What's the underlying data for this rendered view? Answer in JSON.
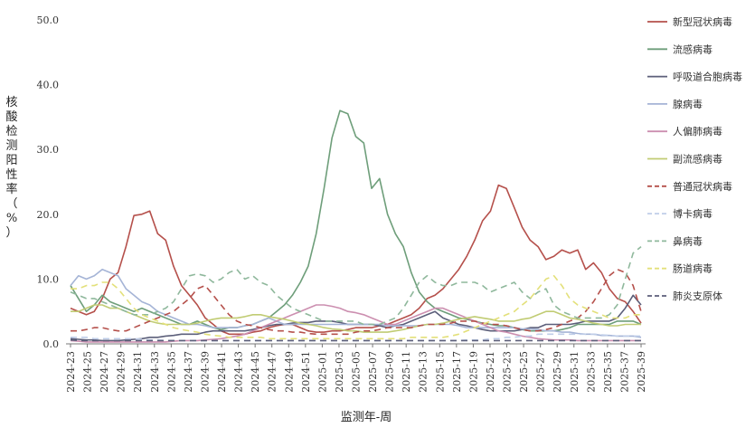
{
  "chart_data": {
    "type": "line",
    "title": "",
    "xlabel": "监测年-周",
    "ylabel": "核酸检测阳性率（%）",
    "ylim": [
      0,
      50
    ],
    "yticks": [
      "0.0",
      "10.0",
      "20.0",
      "30.0",
      "40.0",
      "50.0"
    ],
    "grid": false,
    "legend_position": "right",
    "x_tick_labels": [
      "2024-23",
      "2024-25",
      "2024-27",
      "2024-29",
      "2024-31",
      "2024-33",
      "2024-35",
      "2024-37",
      "2024-39",
      "2024-41",
      "2024-43",
      "2024-45",
      "2024-47",
      "2024-49",
      "2024-51",
      "2025-01",
      "2025-03",
      "2025-05",
      "2025-07",
      "2025-09",
      "2025-11",
      "2025-13",
      "2025-15",
      "2025-17",
      "2025-19",
      "2025-21",
      "2025-23",
      "2025-25",
      "2025-27",
      "2025-29",
      "2025-31",
      "2025-33",
      "2025-35",
      "2025-37",
      "2025-39"
    ],
    "series": [
      {
        "name": "新型冠状病毒",
        "color": "#b5504b",
        "dash": "solid",
        "values": [
          5.5,
          5,
          4.5,
          5,
          7,
          10,
          11,
          15,
          19.8,
          20,
          20.5,
          17,
          16,
          12,
          9,
          7.5,
          6,
          4,
          3,
          2,
          1.5,
          1.5,
          1.5,
          1.8,
          2,
          2.5,
          2.8,
          3,
          3,
          2.5,
          2,
          1.8,
          1.8,
          2,
          2,
          2.2,
          2.5,
          2.5,
          2.5,
          2.8,
          3,
          3.5,
          4,
          4.5,
          5.5,
          7,
          7.5,
          8.5,
          10,
          11.5,
          13.5,
          16,
          19,
          20.5,
          24.5,
          24,
          21,
          18,
          16,
          15,
          13,
          13.5,
          14.5,
          14,
          14.5,
          11.5,
          12.5,
          11,
          8.5,
          7,
          6.5,
          5,
          3.2
        ]
      },
      {
        "name": "流感病毒",
        "color": "#6e9e7a",
        "dash": "solid",
        "values": [
          9,
          7,
          5,
          6,
          7.5,
          6.5,
          6,
          5.5,
          5,
          5.5,
          5,
          4.5,
          4,
          3.5,
          3,
          3,
          3.5,
          3,
          2.5,
          2.2,
          2.5,
          2.5,
          2.8,
          3,
          3.5,
          4,
          5,
          6,
          7.5,
          9.5,
          12,
          17,
          24,
          31.8,
          36,
          35.5,
          32,
          31,
          24,
          25.5,
          20,
          17,
          15,
          11,
          8,
          6.5,
          5.5,
          5,
          4.5,
          4,
          3.8,
          3.5,
          3.2,
          3,
          2.8,
          2.8,
          2.5,
          2.2,
          2,
          2,
          2,
          2,
          2.2,
          2.5,
          3,
          3,
          3,
          3,
          3,
          3.5,
          3.5,
          3.5,
          3
        ]
      },
      {
        "name": "呼吸道合胞病毒",
        "color": "#5c5f7a",
        "dash": "solid",
        "values": [
          0.8,
          0.7,
          0.6,
          0.6,
          0.5,
          0.5,
          0.5,
          0.6,
          0.7,
          0.8,
          1,
          1,
          1.2,
          1.3,
          1.5,
          1.5,
          1.5,
          1.8,
          2,
          2,
          2,
          2,
          2,
          2.2,
          2.5,
          2.8,
          3,
          3,
          3.2,
          3.3,
          3.3,
          3.5,
          3.5,
          3.5,
          3.3,
          3,
          3,
          3,
          3,
          2.8,
          2.5,
          2.8,
          3,
          3.5,
          4,
          4.5,
          5,
          4,
          3.5,
          3,
          2.8,
          2.5,
          2.2,
          2,
          2,
          2,
          2,
          2.2,
          2.5,
          2.5,
          3,
          3,
          3,
          3,
          3.2,
          3.5,
          3.5,
          3.5,
          3.5,
          4,
          5.5,
          7.5,
          6
        ]
      },
      {
        "name": "腺病毒",
        "color": "#a5b4d6",
        "dash": "solid",
        "values": [
          9,
          10.5,
          10,
          10.5,
          11.5,
          11,
          10.5,
          8.5,
          7.5,
          6.5,
          6,
          5,
          4.5,
          4,
          3.5,
          3,
          3,
          2.8,
          2.5,
          2.5,
          2.5,
          2.5,
          2.8,
          3,
          3.5,
          4,
          3.5,
          3,
          3,
          3,
          3,
          3,
          3,
          3,
          3,
          3,
          3,
          3,
          3,
          3,
          2.8,
          2.8,
          2.8,
          2.8,
          2.8,
          3,
          3,
          3,
          3,
          2.8,
          2.5,
          2.5,
          2.5,
          2.5,
          2.5,
          2.5,
          2.5,
          2.3,
          2.3,
          2.2,
          2,
          2,
          1.8,
          1.8,
          1.6,
          1.5,
          1.5,
          1.3,
          1.3,
          1.2,
          1.2,
          1.2,
          1
        ]
      },
      {
        "name": "人偏肺病毒",
        "color": "#cc8fb0",
        "dash": "solid",
        "values": [
          0.5,
          0.4,
          0.3,
          0.3,
          0.3,
          0.3,
          0.3,
          0.3,
          0.3,
          0.3,
          0.3,
          0.3,
          0.3,
          0.4,
          0.5,
          0.5,
          0.5,
          0.6,
          0.7,
          0.8,
          1,
          1.2,
          1.5,
          2,
          2.5,
          3,
          3.5,
          4,
          4.5,
          5,
          5.5,
          6,
          6,
          5.8,
          5.5,
          5,
          4.8,
          4.5,
          4,
          3.5,
          3,
          3,
          3.5,
          4,
          4.5,
          5,
          5.5,
          5.5,
          5,
          4.5,
          4,
          3.5,
          3,
          2.5,
          2,
          1.8,
          1.5,
          1.2,
          1,
          0.8,
          0.7,
          0.6,
          0.6,
          0.6,
          0.5,
          0.5,
          0.5,
          0.5,
          0.5,
          0.5,
          0.5,
          0.5,
          0.5
        ]
      },
      {
        "name": "副流感病毒",
        "color": "#c1cc74",
        "dash": "solid",
        "values": [
          5,
          5,
          5.5,
          6,
          6,
          5.5,
          5.5,
          5,
          4.5,
          4,
          3.5,
          3.2,
          3,
          3,
          3,
          3,
          3.2,
          3.5,
          3.8,
          4,
          4,
          4,
          4.2,
          4.5,
          4.5,
          4.2,
          4,
          3.8,
          3.5,
          3.2,
          3,
          2.8,
          2.5,
          2.3,
          2.2,
          2,
          2,
          1.8,
          1.8,
          1.8,
          1.8,
          2,
          2.2,
          2.5,
          2.8,
          3,
          3,
          3.2,
          3.5,
          3.8,
          4,
          4.2,
          4,
          3.8,
          3.5,
          3.5,
          3.5,
          3.8,
          4,
          4.5,
          5,
          5,
          4.5,
          4,
          3.8,
          3.5,
          3.2,
          3,
          2.8,
          2.8,
          3,
          3,
          3
        ]
      },
      {
        "name": "普通冠状病毒",
        "color": "#b5504b",
        "dash": "long",
        "values": [
          2,
          2,
          2.2,
          2.5,
          2.5,
          2.2,
          2,
          2,
          2.5,
          3,
          3.5,
          4,
          4.5,
          5,
          6,
          7,
          8.5,
          9,
          7.5,
          6,
          4.5,
          3.5,
          3,
          2.8,
          2.5,
          2.2,
          2,
          2,
          1.8,
          1.8,
          1.6,
          1.5,
          1.5,
          1.5,
          1.5,
          1.5,
          1.8,
          2,
          2,
          2.2,
          2.5,
          2.5,
          2.5,
          2.5,
          2.8,
          3,
          3,
          3,
          3.2,
          3.5,
          3.5,
          3.5,
          3.2,
          3,
          3,
          2.8,
          2.5,
          2.2,
          2,
          2,
          2.2,
          2.5,
          3,
          3.5,
          4,
          5,
          6.5,
          8.5,
          10.5,
          11.5,
          11,
          9,
          5
        ]
      },
      {
        "name": "博卡病毒",
        "color": "#bfcde8",
        "dash": "long",
        "values": [
          1,
          1,
          1,
          0.8,
          0.8,
          0.8,
          0.8,
          0.8,
          0.8,
          0.7,
          0.6,
          0.6,
          0.5,
          0.5,
          0.5,
          0.5,
          0.5,
          0.5,
          0.5,
          0.5,
          0.5,
          0.5,
          0.5,
          0.5,
          0.5,
          0.5,
          0.5,
          0.5,
          0.5,
          0.5,
          0.5,
          0.5,
          0.5,
          0.5,
          0.5,
          0.5,
          0.5,
          0.5,
          0.5,
          0.5,
          0.5,
          0.5,
          0.5,
          0.5,
          0.5,
          0.5,
          0.5,
          0.5,
          0.5,
          0.5,
          0.6,
          0.6,
          0.6,
          0.8,
          0.8,
          1,
          1,
          1.2,
          1.2,
          1.5,
          1.5,
          1.5,
          1.5,
          1.5,
          1.5,
          1.5,
          1.5,
          1.4,
          1.3,
          1.2,
          1.2,
          1.2,
          1.2
        ]
      },
      {
        "name": "鼻病毒",
        "color": "#8fb89c",
        "dash": "long",
        "values": [
          8,
          7.5,
          7,
          7,
          6.5,
          6,
          5.5,
          5,
          4.5,
          4.5,
          4.5,
          5,
          5.5,
          6.5,
          8.5,
          10.5,
          10.8,
          10.5,
          9.5,
          10,
          11,
          11.5,
          10,
          10.5,
          9.5,
          9,
          7.5,
          6.5,
          5.5,
          5,
          4.5,
          4,
          3.5,
          3.5,
          3.5,
          3.5,
          3.5,
          3,
          3,
          3,
          3.5,
          4,
          5.5,
          7.5,
          9.5,
          10.5,
          9.5,
          9,
          9,
          9.5,
          9.5,
          9.5,
          9,
          8,
          8.5,
          9,
          9.5,
          8,
          7,
          8,
          8.5,
          6,
          5,
          4.5,
          4,
          4,
          4,
          4,
          4.5,
          6,
          10,
          14,
          15
        ]
      },
      {
        "name": "肠道病毒",
        "color": "#e3e07a",
        "dash": "long",
        "values": [
          8.5,
          8.5,
          9,
          9,
          9.5,
          9.5,
          8.5,
          7,
          5.5,
          4.5,
          4,
          3.5,
          3,
          2.5,
          2.2,
          2,
          1.8,
          1.5,
          1.3,
          1.2,
          1,
          1,
          1,
          1,
          1,
          0.8,
          0.8,
          0.8,
          0.8,
          0.8,
          0.8,
          0.8,
          0.8,
          0.8,
          0.8,
          0.8,
          0.8,
          0.8,
          0.8,
          0.8,
          0.8,
          0.8,
          0.8,
          1,
          1,
          1,
          1,
          1,
          1.2,
          1.5,
          2,
          2.5,
          3,
          3.5,
          4,
          4.5,
          5,
          6,
          7,
          8.5,
          10,
          10.5,
          9,
          7,
          6,
          5.5,
          5,
          4.5,
          4,
          4,
          4,
          4.5,
          4.5
        ]
      },
      {
        "name": "肺炎支原体",
        "color": "#5c5f7a",
        "dash": "long",
        "values": [
          0.6,
          0.5,
          0.5,
          0.5,
          0.5,
          0.5,
          0.5,
          0.5,
          0.5,
          0.5,
          0.5,
          0.5,
          0.5,
          0.5,
          0.5,
          0.5,
          0.5,
          0.5,
          0.5,
          0.5,
          0.5,
          0.5,
          0.5,
          0.5,
          0.5,
          0.5,
          0.5,
          0.5,
          0.5,
          0.5,
          0.5,
          0.5,
          0.5,
          0.5,
          0.5,
          0.5,
          0.5,
          0.5,
          0.5,
          0.5,
          0.5,
          0.5,
          0.5,
          0.5,
          0.5,
          0.5,
          0.5,
          0.5,
          0.5,
          0.5,
          0.5,
          0.5,
          0.5,
          0.5,
          0.5,
          0.5,
          0.5,
          0.5,
          0.5,
          0.5,
          0.5,
          0.5,
          0.5,
          0.5,
          0.5,
          0.5,
          0.5,
          0.5,
          0.5,
          0.5,
          0.5,
          0.5,
          0.5
        ]
      }
    ]
  }
}
